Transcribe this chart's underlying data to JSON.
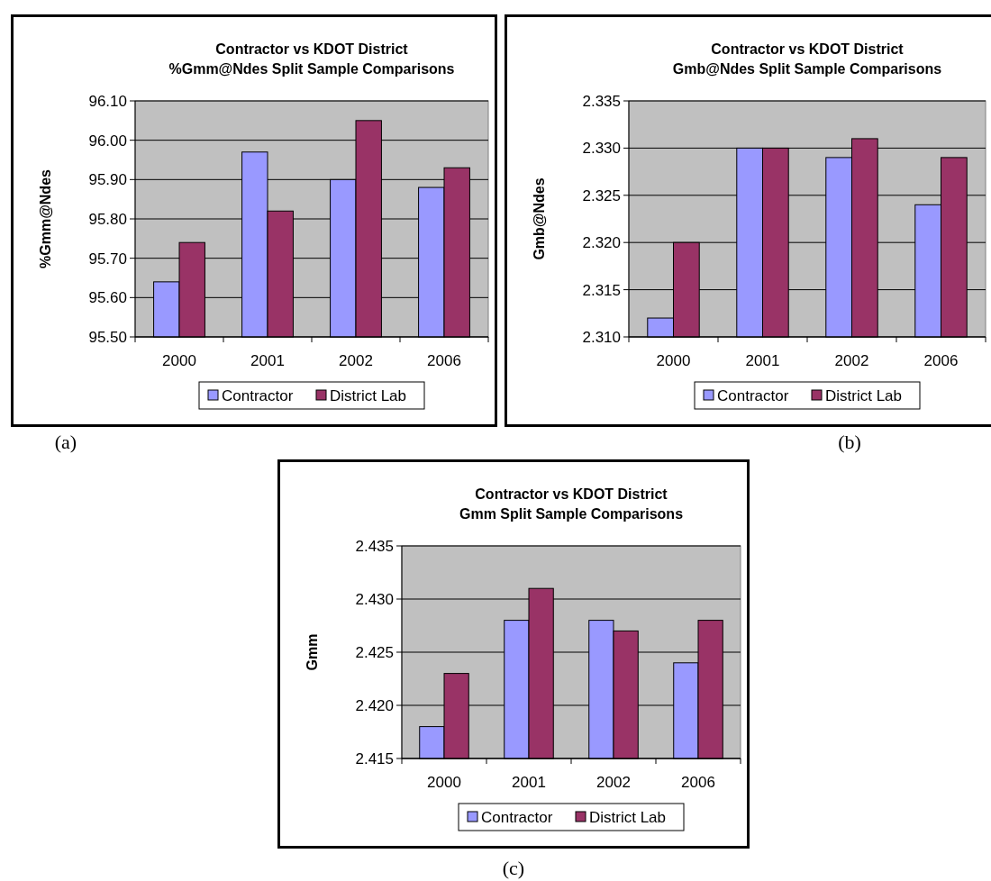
{
  "chart_data": [
    {
      "type": "bar",
      "title": "Contractor vs KDOT District\n%Gmm@Ndes Split Sample Comparisons",
      "ylabel": "%Gmm@Ndes",
      "categories": [
        "2000",
        "2001",
        "2002",
        "2006"
      ],
      "series": [
        {
          "name": "Contractor",
          "color": "#9999ff",
          "values": [
            95.64,
            95.97,
            95.9,
            95.88
          ]
        },
        {
          "name": "District Lab",
          "color": "#993366",
          "values": [
            95.74,
            95.82,
            96.05,
            95.93
          ]
        }
      ],
      "ylim": [
        95.5,
        96.1
      ],
      "yticks": [
        {
          "value": 95.5,
          "label": "95.50"
        },
        {
          "value": 95.6,
          "label": "95.60"
        },
        {
          "value": 95.7,
          "label": "95.70"
        },
        {
          "value": 95.8,
          "label": "95.80"
        },
        {
          "value": 95.9,
          "label": "95.90"
        },
        {
          "value": 96,
          "label": "96.00"
        },
        {
          "value": 96.1,
          "label": "96.10"
        }
      ],
      "grid": "y",
      "legend": "bottom",
      "annotations": [
        "(a)"
      ]
    },
    {
      "type": "bar",
      "title": "Contractor vs KDOT District\nGmb@Ndes Split Sample Comparisons",
      "ylabel": "Gmb@Ndes",
      "categories": [
        "2000",
        "2001",
        "2002",
        "2006"
      ],
      "series": [
        {
          "name": "Contractor",
          "color": "#9999ff",
          "values": [
            2.312,
            2.33,
            2.329,
            2.324
          ]
        },
        {
          "name": "District Lab",
          "color": "#993366",
          "values": [
            2.32,
            2.33,
            2.331,
            2.329
          ]
        }
      ],
      "ylim": [
        2.31,
        2.335
      ],
      "yticks": [
        {
          "value": 2.31,
          "label": "2.310"
        },
        2.315,
        {
          "value": 2.32,
          "label": "2.320"
        },
        2.325,
        {
          "value": 2.33,
          "label": "2.330"
        },
        2.335
      ],
      "grid": "y",
      "legend": "bottom",
      "annotations": [
        "(b)"
      ]
    },
    {
      "type": "bar",
      "title": "Contractor vs KDOT District\nGmm Split Sample Comparisons",
      "ylabel": "Gmm",
      "categories": [
        "2000",
        "2001",
        "2002",
        "2006"
      ],
      "series": [
        {
          "name": "Contractor",
          "color": "#9999ff",
          "values": [
            2.418,
            2.428,
            2.428,
            2.424
          ]
        },
        {
          "name": "District Lab",
          "color": "#993366",
          "values": [
            2.423,
            2.431,
            2.427,
            2.428
          ]
        }
      ],
      "ylim": [
        2.415,
        2.435
      ],
      "yticks": [
        2.415,
        {
          "value": 2.42,
          "label": "2.420"
        },
        2.425,
        {
          "value": 2.43,
          "label": "2.430"
        },
        2.435
      ],
      "grid": "y",
      "legend": "bottom",
      "annotations": [
        "(c)"
      ]
    }
  ]
}
